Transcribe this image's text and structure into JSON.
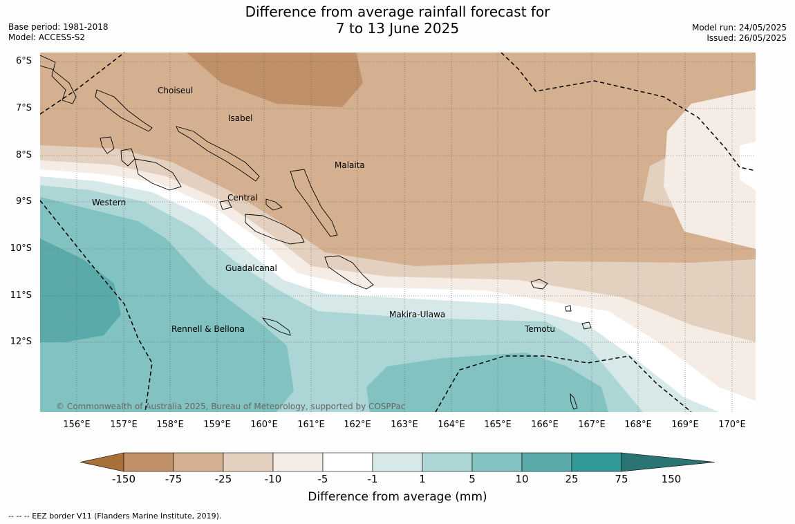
{
  "title": {
    "line1": "Difference from average rainfall forecast for",
    "line2": "7 to 13 June 2025"
  },
  "header_left": {
    "base_period": "Base period: 1981-2018",
    "model": "Model: ACCESS-S2"
  },
  "header_right": {
    "model_run": "Model run: 24/05/2025",
    "issued": "Issued: 26/05/2025"
  },
  "map": {
    "latitude_labels": [
      "6°S",
      "7°S",
      "8°S",
      "9°S",
      "10°S",
      "11°S",
      "12°S"
    ],
    "longitude_labels": [
      "156°E",
      "157°E",
      "158°E",
      "159°E",
      "160°E",
      "161°E",
      "162°E",
      "163°E",
      "164°E",
      "165°E",
      "166°E",
      "167°E",
      "168°E",
      "169°E",
      "170°E"
    ],
    "place_labels": [
      "Choiseul",
      "Isabel",
      "Malaita",
      "Central",
      "Western",
      "Guadalcanal",
      "Makira-Ulawa",
      "Rennell & Bellona",
      "Temotu"
    ],
    "copyright": "© Commonwealth of Australia 2025, Bureau of Meteorology, supported by COSPPac"
  },
  "colorbar": {
    "tick_labels": [
      "-150",
      "-75",
      "-25",
      "-10",
      "-5",
      "-1",
      "1",
      "5",
      "10",
      "25",
      "75",
      "150"
    ],
    "colors": [
      "#a8713a",
      "#c09068",
      "#d4b090",
      "#e4d0bf",
      "#f5ece6",
      "#ffffff",
      "#d6e8e7",
      "#acd6d5",
      "#82c2c1",
      "#5aaaa9",
      "#339a97",
      "#2a7473"
    ],
    "title": "Difference from average (mm)"
  },
  "footnote": "--  --  -- EEZ border V11 (Flanders Marine Institute, 2019)."
}
